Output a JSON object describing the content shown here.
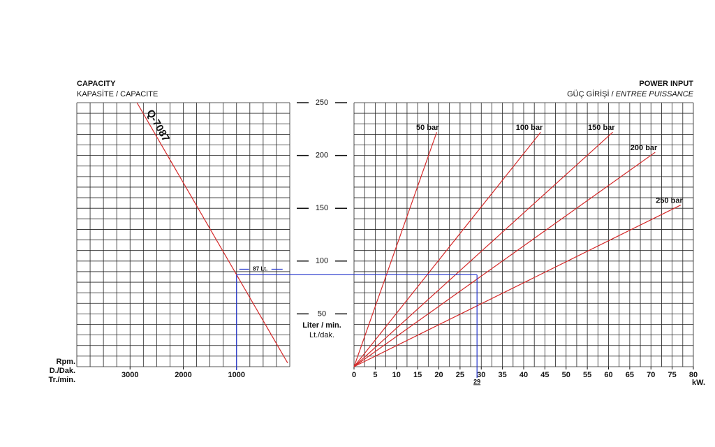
{
  "chart_data": [
    {
      "type": "line",
      "title": "CAPACITY",
      "subtitle": "KAPASİTE / CAPACITE",
      "xlabel": [
        "Rpm.",
        "D./Dak.",
        "Tr./min."
      ],
      "ylabel": [
        "Liter / min.",
        "Lt./dak."
      ],
      "xlim": [
        4000,
        0
      ],
      "xticks": [
        3000,
        2000,
        1000
      ],
      "ylim": [
        0,
        250
      ],
      "yticks": [
        50,
        100,
        150,
        200,
        250
      ],
      "series": [
        {
          "name": "Q-7087",
          "color": "#d42a2a",
          "x": [
            2870,
            40
          ],
          "values": [
            250,
            3.5
          ]
        }
      ],
      "annotation": {
        "text": "87 Lt.",
        "x": 1000,
        "y": 87,
        "color": "#2233cc"
      }
    },
    {
      "type": "line",
      "title": "POWER INPUT",
      "subtitle": [
        "GÜÇ GİRİŞİ /",
        "ENTREE PUISSANCE"
      ],
      "xlabel": "kW.",
      "xlim": [
        0,
        80
      ],
      "xticks": [
        0,
        5,
        10,
        15,
        20,
        25,
        30,
        35,
        40,
        45,
        50,
        55,
        60,
        65,
        70,
        75,
        80
      ],
      "ylim": [
        0,
        250
      ],
      "series": [
        {
          "name": "50 bar",
          "color": "#d42a2a",
          "x": [
            0,
            19.5
          ],
          "values": [
            0,
            222
          ]
        },
        {
          "name": "100 bar",
          "color": "#d42a2a",
          "x": [
            0,
            44
          ],
          "values": [
            0,
            222
          ]
        },
        {
          "name": "150 bar",
          "color": "#d42a2a",
          "x": [
            0,
            61
          ],
          "values": [
            0,
            222
          ]
        },
        {
          "name": "200 bar",
          "color": "#d42a2a",
          "x": [
            0,
            71
          ],
          "values": [
            0,
            203
          ]
        },
        {
          "name": "250 bar",
          "color": "#d42a2a",
          "x": [
            0,
            77
          ],
          "values": [
            0,
            153
          ]
        }
      ],
      "annotation": {
        "text": "29",
        "x": 29,
        "y": 87,
        "color": "#2233cc"
      }
    }
  ]
}
